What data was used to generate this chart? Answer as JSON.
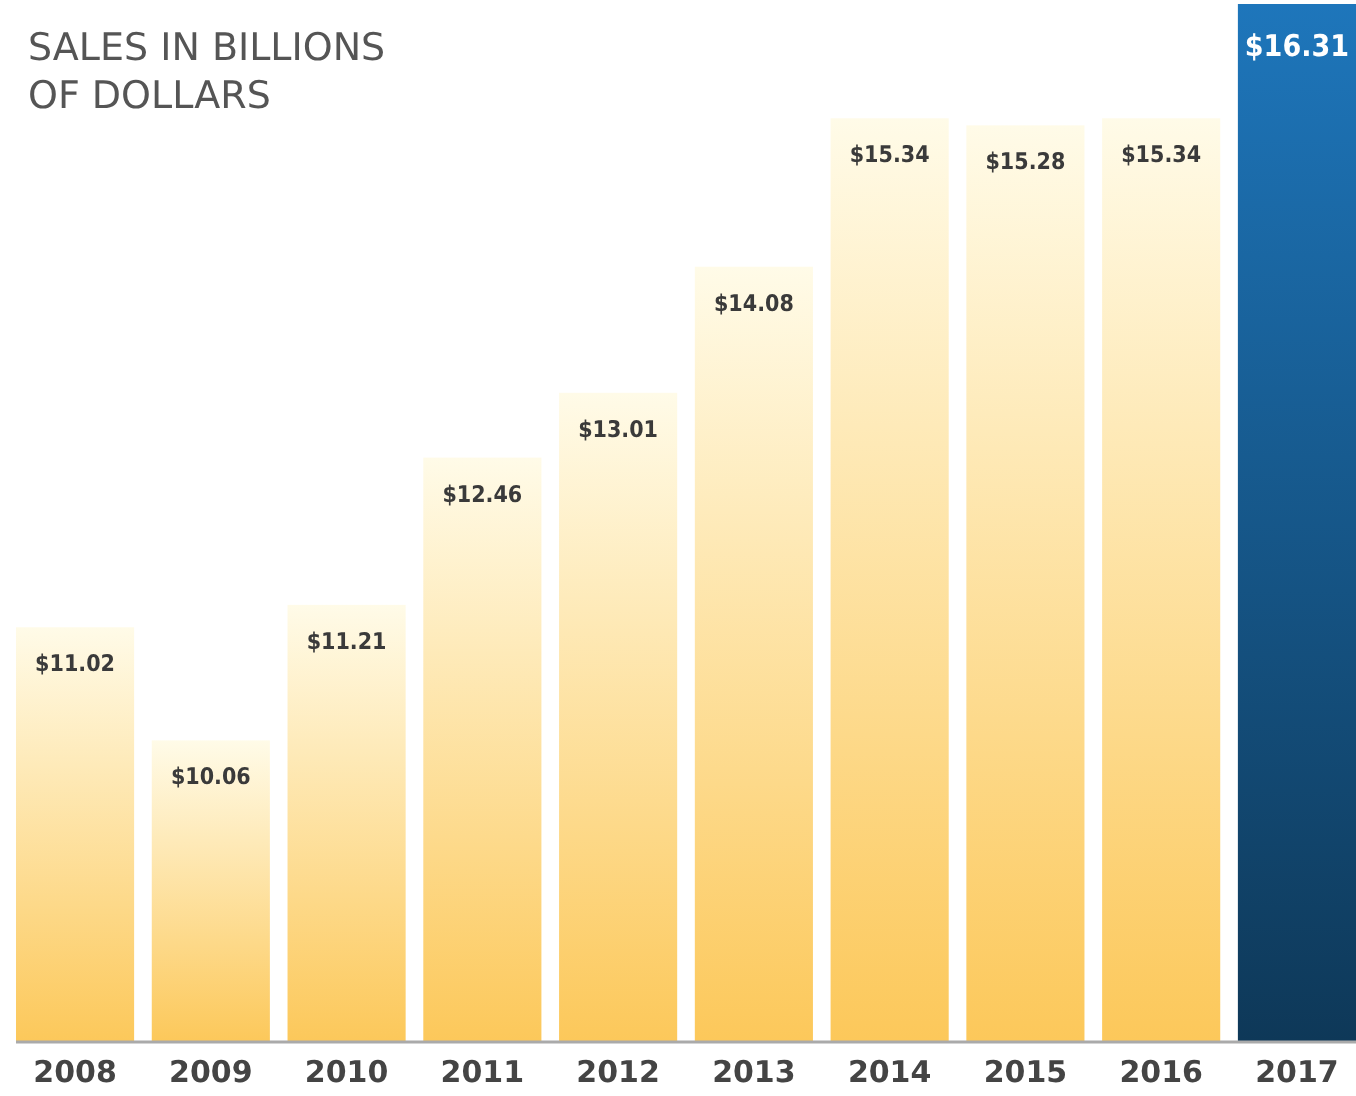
{
  "chart_data": {
    "type": "bar",
    "title": "SALES IN BILLIONS OF DOLLARS",
    "categories": [
      "2008",
      "2009",
      "2010",
      "2011",
      "2012",
      "2013",
      "2014",
      "2015",
      "2016",
      "2017"
    ],
    "values": [
      11.02,
      10.06,
      11.21,
      12.46,
      13.01,
      14.08,
      15.34,
      15.28,
      15.34,
      16.31
    ],
    "value_labels": [
      "$11.02",
      "$10.06",
      "$11.21",
      "$12.46",
      "$13.01",
      "$14.08",
      "$15.34",
      "$15.28",
      "$15.34",
      "$16.31"
    ],
    "colors": [
      "#fcc85a",
      "#fcc85a",
      "#fcc85a",
      "#fcc85a",
      "#fcc85a",
      "#fcc85a",
      "#fcc85a",
      "#fcc85a",
      "#fcc85a",
      "#1b6aa8"
    ],
    "ylim": [
      7.5,
      16.31
    ],
    "tick_labels": "x"
  }
}
